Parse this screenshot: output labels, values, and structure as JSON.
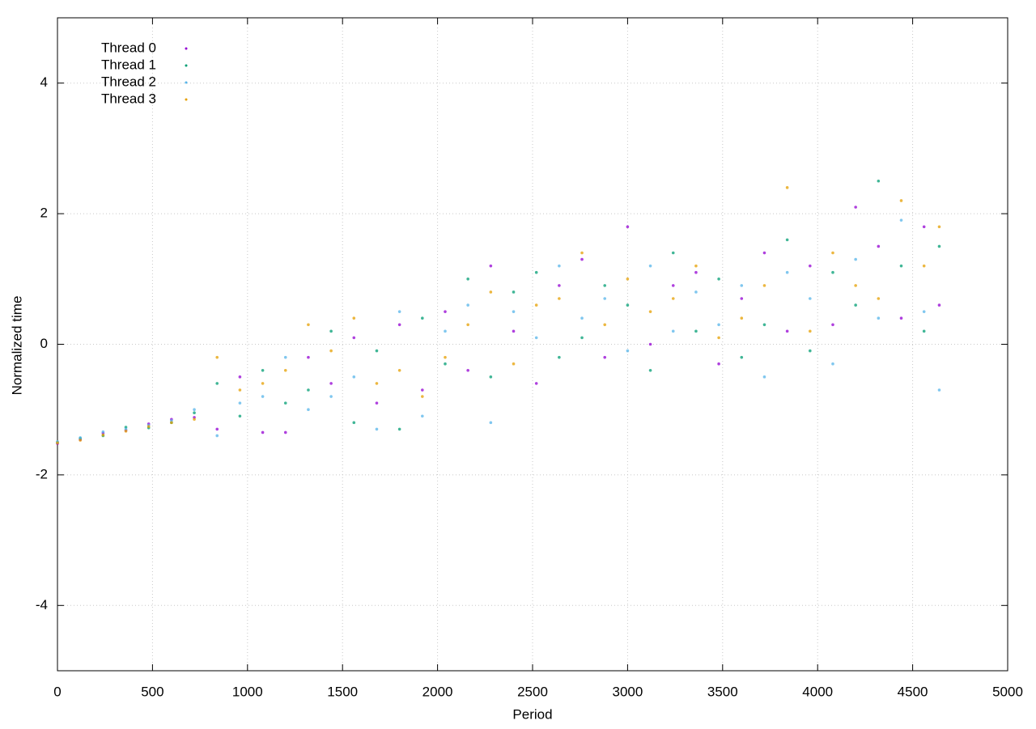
{
  "chart_data": {
    "type": "scatter",
    "xlabel": "Period",
    "ylabel": "Normalized time",
    "xlim": [
      0,
      5000
    ],
    "ylim": [
      -5,
      5
    ],
    "xticks": [
      0,
      500,
      1000,
      1500,
      2000,
      2500,
      3000,
      3500,
      4000,
      4500,
      5000
    ],
    "yticks": [
      -4,
      -2,
      0,
      2,
      4
    ],
    "grid": true,
    "legend": "upper left",
    "x": [
      0,
      120,
      240,
      360,
      480,
      600,
      720,
      840,
      960,
      1080,
      1200,
      1320,
      1440,
      1560,
      1680,
      1800,
      1920,
      2040,
      2160,
      2280,
      2400,
      2520,
      2640,
      2760,
      2880,
      3000,
      3120,
      3240,
      3360,
      3480,
      3600,
      3720,
      3840,
      3960,
      4080,
      4200,
      4320,
      4440,
      4560,
      4640
    ],
    "series": [
      {
        "name": "Thread 0",
        "color": "#9400d3",
        "values": [
          -1.52,
          -1.46,
          -1.36,
          -1.32,
          -1.22,
          -1.15,
          -1.12,
          -1.3,
          -0.5,
          -1.35,
          -1.35,
          -0.2,
          -0.6,
          0.1,
          -0.9,
          0.3,
          -0.7,
          0.5,
          -0.4,
          1.2,
          0.2,
          -0.6,
          0.9,
          1.3,
          -0.2,
          1.8,
          0.0,
          0.9,
          1.1,
          -0.3,
          0.7,
          1.4,
          0.2,
          1.2,
          0.3,
          2.1,
          1.5,
          0.4,
          1.8,
          0.6
        ]
      },
      {
        "name": "Thread 1",
        "color": "#009e73",
        "values": [
          -1.5,
          -1.44,
          -1.4,
          -1.27,
          -1.28,
          -1.2,
          -1.05,
          -0.6,
          -1.1,
          -0.4,
          -0.9,
          -0.7,
          0.2,
          -1.2,
          -0.1,
          -1.3,
          0.4,
          -0.3,
          1.0,
          -0.5,
          0.8,
          1.1,
          -0.2,
          0.1,
          0.9,
          0.6,
          -0.4,
          1.4,
          0.2,
          1.0,
          -0.2,
          0.3,
          1.6,
          -0.1,
          1.1,
          0.6,
          2.5,
          1.2,
          0.2,
          1.5
        ]
      },
      {
        "name": "Thread 2",
        "color": "#56b4e9",
        "values": [
          -1.49,
          -1.43,
          -1.34,
          -1.3,
          -1.24,
          -1.17,
          -1.0,
          -1.4,
          -0.9,
          -0.8,
          -0.2,
          -1.0,
          -0.8,
          -0.5,
          -1.3,
          0.5,
          -1.1,
          0.2,
          0.6,
          -1.2,
          0.5,
          0.1,
          1.2,
          0.4,
          0.7,
          -0.1,
          1.2,
          0.2,
          0.8,
          0.3,
          0.9,
          -0.5,
          1.1,
          0.7,
          -0.3,
          1.3,
          0.4,
          1.9,
          0.5,
          -0.7
        ]
      },
      {
        "name": "Thread 3",
        "color": "#e69f00",
        "values": [
          -1.51,
          -1.47,
          -1.39,
          -1.33,
          -1.26,
          -1.2,
          -1.15,
          -0.2,
          -0.7,
          -0.6,
          -0.4,
          0.3,
          -0.1,
          0.4,
          -0.6,
          -0.4,
          -0.8,
          -0.2,
          0.3,
          0.8,
          -0.3,
          0.6,
          0.7,
          1.4,
          0.3,
          1.0,
          0.5,
          0.7,
          1.2,
          0.1,
          0.4,
          0.9,
          2.4,
          0.2,
          1.4,
          0.9,
          0.7,
          2.2,
          1.2,
          1.8
        ]
      }
    ]
  }
}
